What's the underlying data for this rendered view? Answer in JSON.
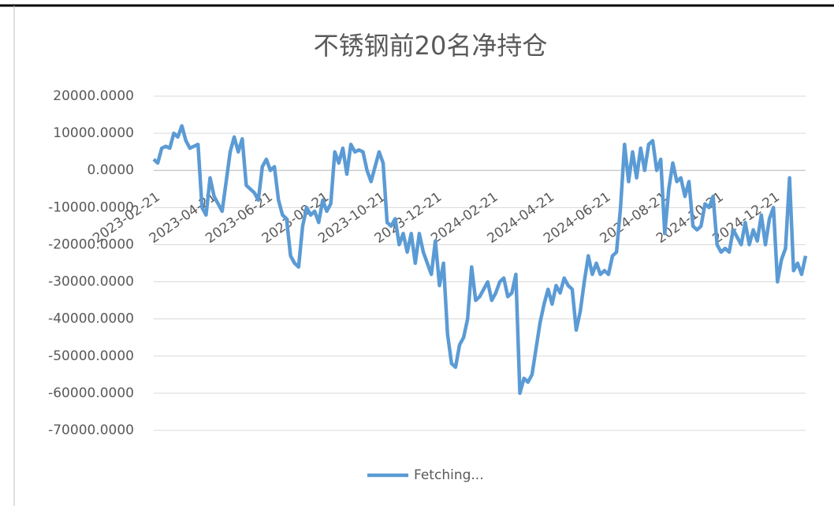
{
  "chart_data": {
    "type": "line",
    "title": "不锈钢前20名净持仓",
    "categories": [
      "2023-02-21",
      null,
      null,
      null,
      null,
      null,
      null,
      null,
      null,
      null,
      null,
      null,
      null,
      null,
      "2023-04-21",
      null,
      null,
      null,
      null,
      null,
      null,
      null,
      null,
      null,
      null,
      null,
      null,
      null,
      "2023-06-21",
      null,
      null,
      null,
      null,
      null,
      null,
      null,
      null,
      null,
      null,
      null,
      null,
      null,
      "2023-08-21",
      null,
      null,
      null,
      null,
      null,
      null,
      null,
      null,
      null,
      null,
      null,
      null,
      null,
      "2023-10-21",
      null,
      null,
      null,
      null,
      null,
      null,
      null,
      null,
      null,
      null,
      null,
      null,
      null,
      "2023-12-21",
      null,
      null,
      null,
      null,
      null,
      null,
      null,
      null,
      null,
      null,
      null,
      null,
      null,
      "2024-02-21",
      null,
      null,
      null,
      null,
      null,
      null,
      null,
      null,
      null,
      null,
      null,
      null,
      null,
      "2024-04-21",
      null,
      null,
      null,
      null,
      null,
      null,
      null,
      null,
      null,
      null,
      null,
      null,
      null,
      "2024-06-21",
      null,
      null,
      null,
      null,
      null,
      null,
      null,
      null,
      null,
      null,
      null,
      null,
      null,
      "2024-08-21",
      null,
      null,
      null,
      null,
      null,
      null,
      null,
      null,
      null,
      null,
      null,
      null,
      null,
      "2024-10-21",
      null,
      null,
      null,
      null,
      null,
      null,
      null,
      null,
      null,
      null,
      null,
      null,
      null,
      "2024-12-21",
      null,
      null,
      null,
      null,
      null,
      null,
      null,
      null
    ],
    "series": [
      {
        "name": "Fetching...",
        "color": "#5b9bd5",
        "values": [
          3000,
          2000,
          6000,
          6500,
          6000,
          10000,
          9000,
          12000,
          8000,
          6000,
          6500,
          7000,
          -10000,
          -12000,
          -2000,
          -7000,
          -9000,
          -11000,
          -3000,
          5000,
          9000,
          5000,
          8500,
          -4000,
          -5000,
          -6000,
          -8000,
          1000,
          3000,
          0,
          1000,
          -8000,
          -12000,
          -13000,
          -23000,
          -25000,
          -26000,
          -15000,
          -10000,
          -12000,
          -11000,
          -14000,
          -8000,
          -11000,
          -9000,
          5000,
          2000,
          6000,
          -1000,
          7000,
          5000,
          5500,
          5000,
          0,
          -3000,
          1000,
          5000,
          2000,
          -14000,
          -15000,
          -13000,
          -20000,
          -17000,
          -22000,
          -17000,
          -25000,
          -17000,
          -22000,
          -25000,
          -28000,
          -19000,
          -31000,
          -25000,
          -44000,
          -52000,
          -53000,
          -47000,
          -45000,
          -40000,
          -26000,
          -35000,
          -34000,
          -32000,
          -30000,
          -35000,
          -33000,
          -30000,
          -29000,
          -34000,
          -33000,
          -28000,
          -60000,
          -56000,
          -57000,
          -55000,
          -48000,
          -41000,
          -36000,
          -32000,
          -36000,
          -31000,
          -33000,
          -29000,
          -31000,
          -32000,
          -43000,
          -38000,
          -30000,
          -23000,
          -28000,
          -25000,
          -28000,
          -27000,
          -28000,
          -23000,
          -22000,
          -10000,
          7000,
          -3000,
          5000,
          -2000,
          6000,
          0,
          7000,
          8000,
          0,
          3000,
          -17000,
          -5000,
          2000,
          -3000,
          -2000,
          -7000,
          -3000,
          -15000,
          -16000,
          -15000,
          -9000,
          -10000,
          -7000,
          -20000,
          -22000,
          -21000,
          -22000,
          -16000,
          -18000,
          -20000,
          -14000,
          -20000,
          -16000,
          -19000,
          -12000,
          -20000,
          -13000,
          -10000,
          -30000,
          -24000,
          -21000,
          -2000,
          -27000,
          -25000,
          -28000,
          -23000
        ]
      }
    ],
    "ylim": [
      -70000,
      20000
    ],
    "yticks": [
      {
        "value": -70000,
        "label": "-70000.0000"
      },
      {
        "value": -60000,
        "label": "-60000.0000"
      },
      {
        "value": -50000,
        "label": "-50000.0000"
      },
      {
        "value": -40000,
        "label": "-40000.0000"
      },
      {
        "value": -30000,
        "label": "-30000.0000"
      },
      {
        "value": -20000,
        "label": "-20000.0000"
      },
      {
        "value": -10000,
        "label": "-10000.0000"
      },
      {
        "value": 0,
        "label": "0.0000"
      },
      {
        "value": 10000,
        "label": "10000.0000"
      },
      {
        "value": 20000,
        "label": "20000.0000"
      }
    ],
    "grid": true,
    "legend": "bottom"
  }
}
